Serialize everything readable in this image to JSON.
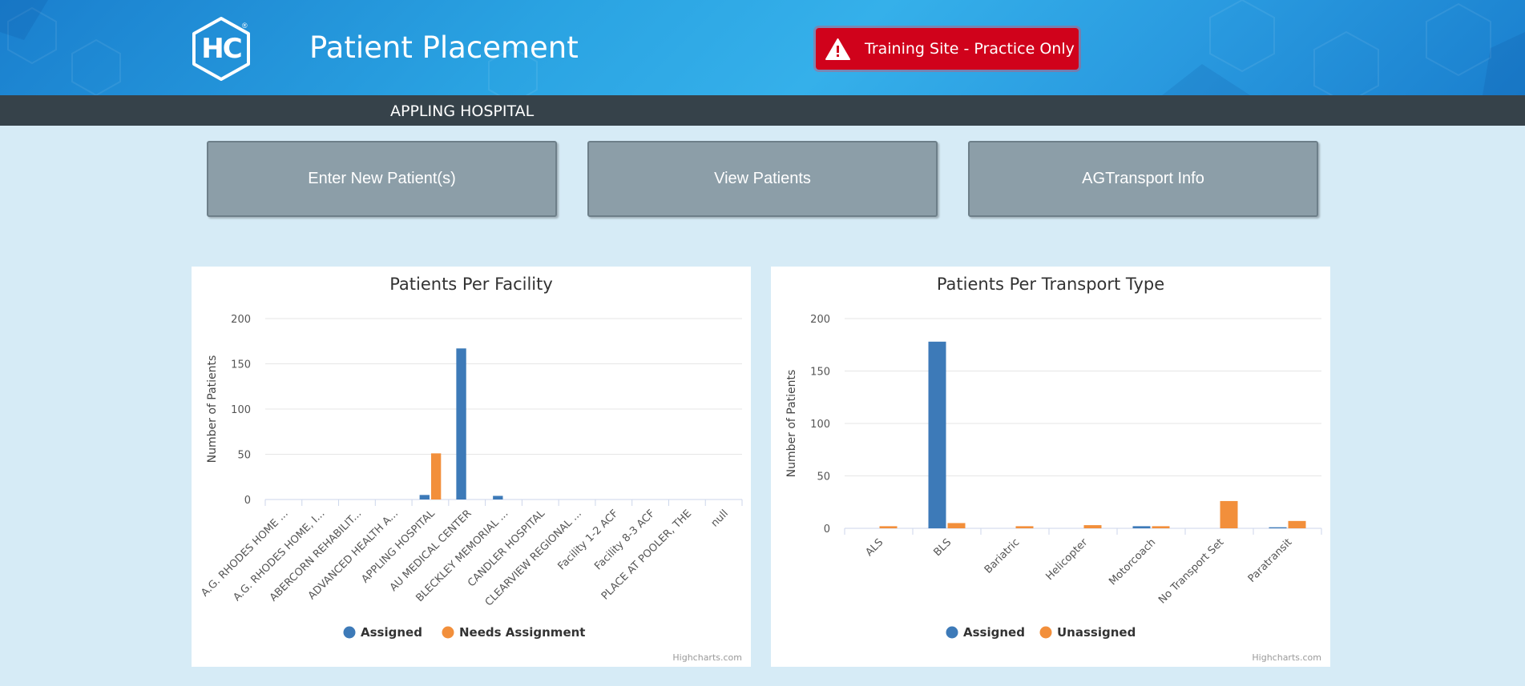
{
  "header": {
    "logo_text": "HC",
    "logo_reg": "®",
    "title": "Patient Placement",
    "training_banner": "Training Site - Practice Only"
  },
  "facility_bar": {
    "name": "APPLING HOSPITAL"
  },
  "actions": [
    {
      "label": "Enter New Patient(s)"
    },
    {
      "label": "View Patients"
    },
    {
      "label": "AGTransport Info"
    }
  ],
  "colors": {
    "assigned": "#3d7ab8",
    "unassigned": "#f28f3b"
  },
  "chart_data": [
    {
      "type": "bar",
      "title": "Patients Per Facility",
      "ylabel": "Number of Patients",
      "xlabel": "",
      "ylim": [
        0,
        200
      ],
      "yticks": [
        0,
        50,
        100,
        150,
        200
      ],
      "grid": true,
      "legend_position": "bottom-center",
      "credit": "Highcharts.com",
      "categories": [
        "A.G. RHODES HOME ...",
        "A.G. RHODES HOME, I...",
        "ABERCORN REHABILIT...",
        "ADVANCED HEALTH A...",
        "APPLING HOSPITAL",
        "AU MEDICAL CENTER",
        "BLECKLEY MEMORIAL ...",
        "CANDLER HOSPITAL",
        "CLEARVIEW REGIONAL ...",
        "Facility 1-2 ACF",
        "Facility 8-3 ACF",
        "PLACE AT POOLER, THE",
        "null"
      ],
      "series": [
        {
          "name": "Assigned",
          "values": [
            0,
            0,
            0,
            0,
            5,
            167,
            4,
            0,
            0,
            0,
            0,
            0,
            0
          ]
        },
        {
          "name": "Needs Assignment",
          "values": [
            0,
            0,
            0,
            0,
            51,
            0,
            0,
            0,
            0,
            0,
            0,
            0,
            0
          ]
        }
      ]
    },
    {
      "type": "bar",
      "title": "Patients Per Transport Type",
      "ylabel": "Number of Patients",
      "xlabel": "",
      "ylim": [
        0,
        200
      ],
      "yticks": [
        0,
        50,
        100,
        150,
        200
      ],
      "grid": true,
      "legend_position": "bottom-center",
      "credit": "Highcharts.com",
      "categories": [
        "ALS",
        "BLS",
        "Bariatric",
        "Helicopter",
        "Motorcoach",
        "No Transport Set",
        "Paratransit"
      ],
      "series": [
        {
          "name": "Assigned",
          "values": [
            0,
            178,
            0,
            0,
            2,
            0,
            1
          ]
        },
        {
          "name": "Unassigned",
          "values": [
            2,
            5,
            2,
            3,
            2,
            26,
            7
          ]
        }
      ]
    }
  ]
}
